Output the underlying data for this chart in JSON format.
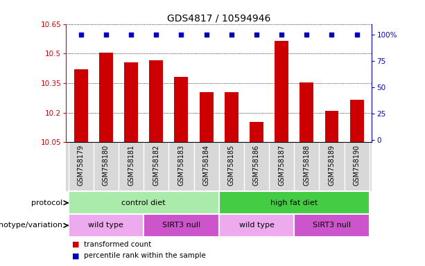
{
  "title": "GDS4817 / 10594946",
  "samples": [
    "GSM758179",
    "GSM758180",
    "GSM758181",
    "GSM758182",
    "GSM758183",
    "GSM758184",
    "GSM758185",
    "GSM758186",
    "GSM758187",
    "GSM758188",
    "GSM758189",
    "GSM758190"
  ],
  "bar_values": [
    10.42,
    10.505,
    10.455,
    10.465,
    10.38,
    10.305,
    10.305,
    10.155,
    10.565,
    10.355,
    10.21,
    10.265
  ],
  "ymin": 10.05,
  "ymax": 10.65,
  "yticks": [
    10.05,
    10.2,
    10.35,
    10.5,
    10.65
  ],
  "ytick_labels": [
    "10.05",
    "10.2",
    "10.35",
    "10.5",
    "10.65"
  ],
  "right_yticks": [
    0,
    25,
    50,
    75,
    100
  ],
  "right_ytick_labels": [
    "0",
    "25",
    "50",
    "75",
    "100%"
  ],
  "bar_color": "#cc0000",
  "dot_color": "#0000bb",
  "sample_bg_color": "#d8d8d8",
  "protocol_groups": [
    {
      "label": "control diet",
      "start": 0,
      "end": 5,
      "color": "#aaeaaa"
    },
    {
      "label": "high fat diet",
      "start": 6,
      "end": 11,
      "color": "#44cc44"
    }
  ],
  "genotype_groups": [
    {
      "label": "wild type",
      "start": 0,
      "end": 2,
      "color": "#eeaaee"
    },
    {
      "label": "SIRT3 null",
      "start": 3,
      "end": 5,
      "color": "#cc55cc"
    },
    {
      "label": "wild type",
      "start": 6,
      "end": 8,
      "color": "#eeaaee"
    },
    {
      "label": "SIRT3 null",
      "start": 9,
      "end": 11,
      "color": "#cc55cc"
    }
  ],
  "protocol_label": "protocol",
  "genotype_label": "genotype/variation",
  "legend_bar_label": "transformed count",
  "legend_dot_label": "percentile rank within the sample",
  "title_fontsize": 10,
  "tick_fontsize": 7.5,
  "label_fontsize": 8
}
